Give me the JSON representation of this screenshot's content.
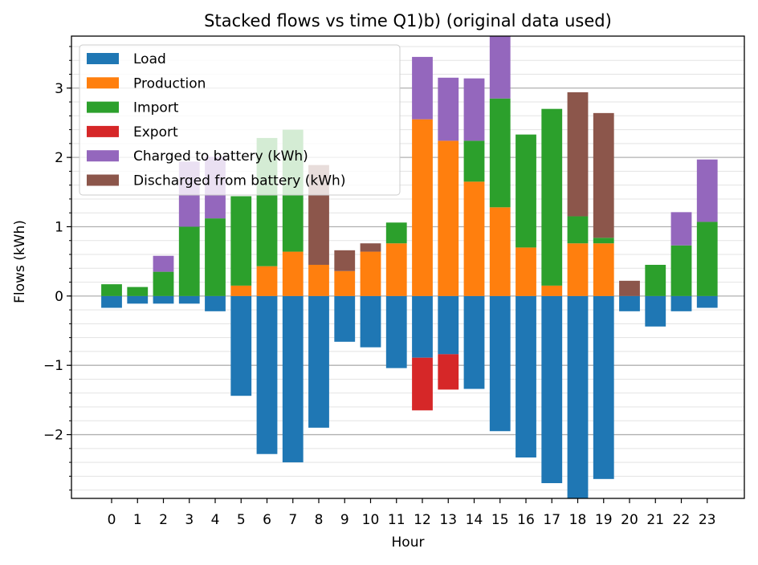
{
  "chart_data": {
    "type": "bar",
    "stacked": true,
    "title": "Stacked flows vs time Q1)b) (original data used)",
    "xlabel": "Hour",
    "ylabel": "Flows (kWh)",
    "ylim": [
      -2.92,
      3.75
    ],
    "categories": [
      "0",
      "1",
      "2",
      "3",
      "4",
      "5",
      "6",
      "7",
      "8",
      "9",
      "10",
      "11",
      "12",
      "13",
      "14",
      "15",
      "16",
      "17",
      "18",
      "19",
      "20",
      "21",
      "22",
      "23"
    ],
    "yticks": [
      -2,
      -1,
      0,
      1,
      2,
      3
    ],
    "ytick_labels": [
      "−2",
      "−1",
      "0",
      "1",
      "2",
      "3"
    ],
    "grid": true,
    "legend_position": "upper-left",
    "series": [
      {
        "name": "Load",
        "color": "#1f77b4",
        "values": [
          -0.17,
          -0.11,
          -0.11,
          -0.11,
          -0.22,
          -1.44,
          -2.28,
          -2.4,
          -1.9,
          -0.66,
          -0.74,
          -1.04,
          -0.89,
          -0.84,
          -1.34,
          -1.95,
          -2.33,
          -2.7,
          -2.95,
          -2.64,
          -0.22,
          -0.44,
          -0.22,
          -0.17
        ]
      },
      {
        "name": "Production",
        "color": "#ff7f0e",
        "values": [
          0,
          0,
          0,
          0,
          0,
          0.15,
          0.43,
          0.64,
          0.45,
          0.36,
          0.64,
          0.76,
          2.55,
          2.24,
          1.65,
          1.28,
          0.7,
          0.15,
          0.76,
          0.76,
          0,
          0,
          0,
          0
        ]
      },
      {
        "name": "Import",
        "color": "#2ca02c",
        "values": [
          0.17,
          0.13,
          0.35,
          1.0,
          1.12,
          1.29,
          1.85,
          1.76,
          0,
          0,
          0,
          0.3,
          0,
          0,
          0.59,
          1.57,
          1.63,
          2.55,
          0.39,
          0.08,
          0,
          0.45,
          0.73,
          1.07
        ]
      },
      {
        "name": "Export",
        "color": "#d62728",
        "values": [
          0,
          0,
          0,
          0,
          0,
          0,
          0,
          0,
          0,
          0,
          0,
          0,
          -0.76,
          -0.51,
          0,
          0,
          0,
          0,
          0,
          0,
          0,
          0,
          0,
          0
        ]
      },
      {
        "name": "Charged to battery (kWh)",
        "color": "#9467bd",
        "values": [
          0,
          0,
          0.23,
          0.94,
          0.89,
          0,
          0,
          0,
          0,
          0,
          0,
          0,
          0.9,
          0.91,
          0.9,
          0.9,
          0,
          0,
          0,
          0,
          0,
          0,
          0.48,
          0.9
        ]
      },
      {
        "name": "Discharged from battery (kWh)",
        "color": "#8c564b",
        "values": [
          0,
          0,
          0,
          0,
          0,
          0,
          0,
          0,
          1.44,
          0.3,
          0.12,
          0,
          0,
          0,
          0,
          0,
          0,
          0,
          1.79,
          1.8,
          0.22,
          0,
          0,
          0
        ]
      }
    ]
  }
}
